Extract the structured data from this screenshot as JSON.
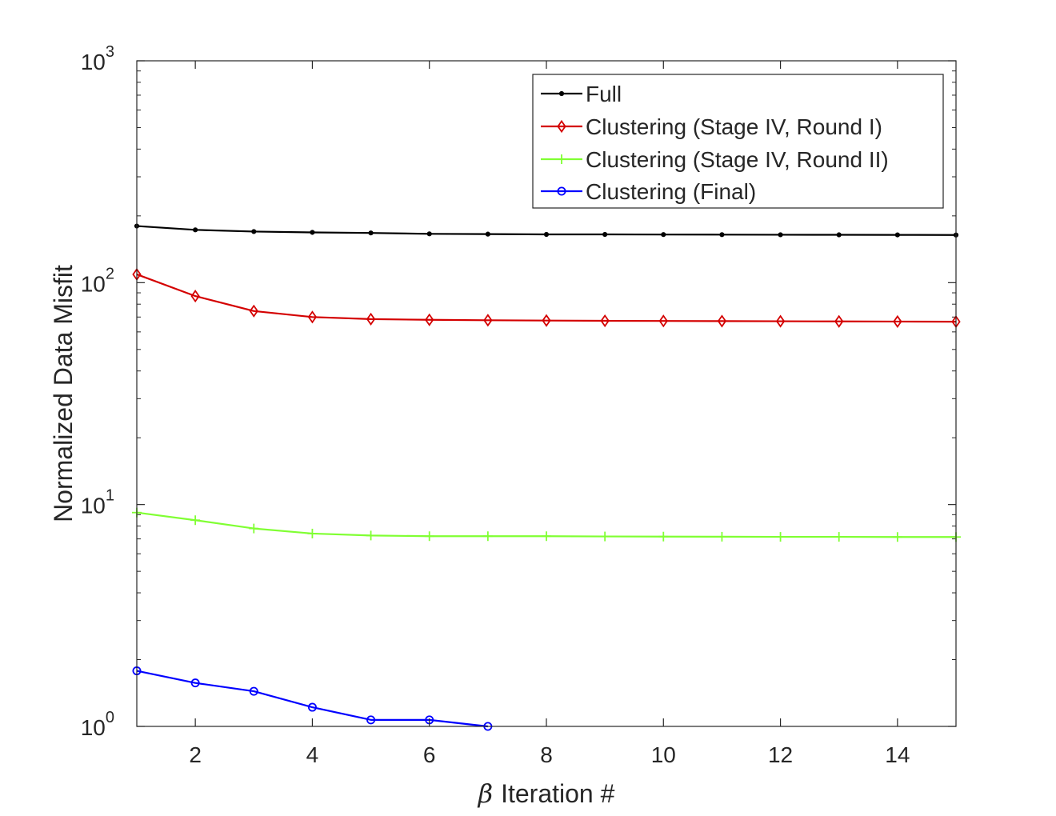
{
  "chart_data": {
    "type": "line",
    "xlabel_symbol": "β",
    "xlabel_text": "Iteration #",
    "ylabel": "Normalized Data Misfit",
    "xlim": [
      1,
      15
    ],
    "ylim": [
      1,
      1000
    ],
    "yscale": "log",
    "xticks": [
      2,
      4,
      6,
      8,
      10,
      12,
      14
    ],
    "yticks": [
      {
        "value": 1,
        "base": "10",
        "exp": "0"
      },
      {
        "value": 10,
        "base": "10",
        "exp": "1"
      },
      {
        "value": 100,
        "base": "10",
        "exp": "2"
      },
      {
        "value": 1000,
        "base": "10",
        "exp": "3"
      }
    ],
    "grid": false,
    "legend_position": "top-right",
    "series": [
      {
        "name": "Full",
        "color": "#000000",
        "marker": "dot",
        "x": [
          1,
          2,
          3,
          4,
          5,
          6,
          7,
          8,
          9,
          10,
          11,
          12,
          13,
          14,
          15
        ],
        "y": [
          180,
          173,
          170,
          168.5,
          167.5,
          166,
          165.5,
          165,
          165,
          164.8,
          164.6,
          164.4,
          164.3,
          164.2,
          164
        ]
      },
      {
        "name": "Clustering (Stage IV, Round I)",
        "color": "#d40000",
        "marker": "diamond",
        "x": [
          1,
          2,
          3,
          4,
          5,
          6,
          7,
          8,
          9,
          10,
          11,
          12,
          13,
          14,
          15
        ],
        "y": [
          109,
          87,
          74.5,
          70,
          68.5,
          68,
          67.7,
          67.5,
          67.3,
          67.2,
          67.1,
          67,
          66.9,
          66.8,
          66.7
        ]
      },
      {
        "name": "Clustering (Stage IV, Round II)",
        "color": "#80ff33",
        "marker": "plus",
        "x": [
          1,
          2,
          3,
          4,
          5,
          6,
          7,
          8,
          9,
          10,
          11,
          12,
          13,
          14,
          15
        ],
        "y": [
          9.2,
          8.5,
          7.8,
          7.4,
          7.25,
          7.2,
          7.2,
          7.2,
          7.18,
          7.17,
          7.16,
          7.15,
          7.15,
          7.14,
          7.14
        ]
      },
      {
        "name": "Clustering (Final)",
        "color": "#0000ff",
        "marker": "circle",
        "x": [
          1,
          2,
          3,
          4,
          5,
          6,
          7
        ],
        "y": [
          1.78,
          1.57,
          1.44,
          1.22,
          1.07,
          1.07,
          1.0
        ]
      }
    ]
  }
}
